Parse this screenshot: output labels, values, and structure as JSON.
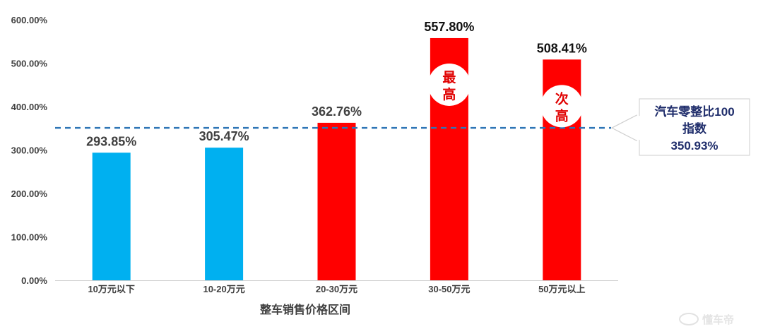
{
  "chart_data": {
    "type": "bar",
    "categories": [
      "10万元以下",
      "10-20万元",
      "20-30万元",
      "30-50万元",
      "50万元以上"
    ],
    "values": [
      293.85,
      305.47,
      362.76,
      557.8,
      508.41
    ],
    "value_labels": [
      "293.85%",
      "305.47%",
      "362.76%",
      "557.80%",
      "508.41%"
    ],
    "bar_colors": [
      "#00b0f0",
      "#00b0f0",
      "#ff0000",
      "#ff0000",
      "#ff0000"
    ],
    "xlabel": "整车销售价格区间",
    "ylabel": "",
    "ylim": [
      0,
      600
    ],
    "yticks": [
      "0.00%",
      "100.00%",
      "200.00%",
      "300.00%",
      "400.00%",
      "500.00%",
      "600.00%"
    ],
    "grid": false,
    "legend": "none",
    "reference_line": {
      "value": 350.93,
      "color": "#2e75b6",
      "style": "dashed",
      "label_lines": [
        "汽车零整比100",
        "指数",
        "350.93%"
      ]
    },
    "badges": [
      {
        "category_index": 3,
        "lines": [
          "最",
          "高"
        ]
      },
      {
        "category_index": 4,
        "lines": [
          "次",
          "高"
        ]
      }
    ]
  },
  "watermark": {
    "text": "懂车帝"
  },
  "colors": {
    "blue_bar": "#00b0f0",
    "red_bar": "#ff0000",
    "callout_text": "#1f2d6b"
  }
}
